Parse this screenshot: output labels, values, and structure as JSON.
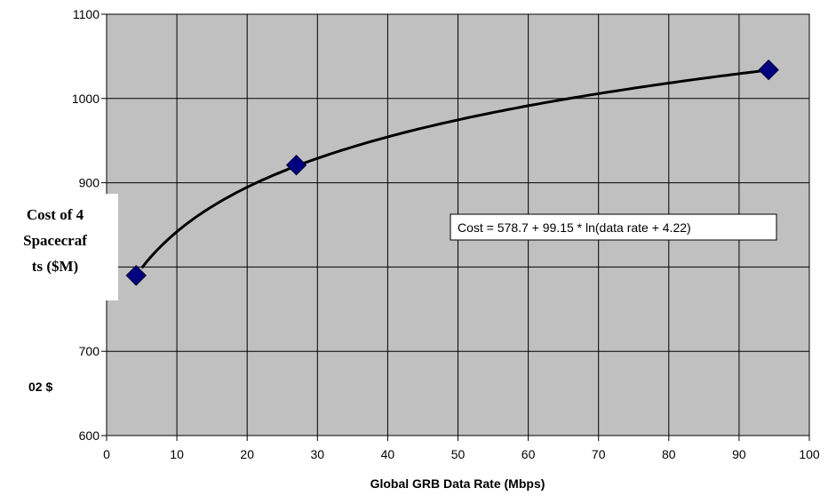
{
  "chart_data": {
    "type": "scatter",
    "xlabel": "Global GRB Data Rate (Mbps)",
    "ylabel_lines": [
      "Cost of 4",
      "Spacecraf",
      "ts ($M)"
    ],
    "note": "02 $",
    "equation": "Cost  = 578.7 + 99.15 * ln(data rate + 4.22)",
    "xlim": [
      0,
      100
    ],
    "ylim": [
      600,
      1100
    ],
    "x_ticks": [
      "0",
      "10",
      "20",
      "30",
      "40",
      "50",
      "60",
      "70",
      "80",
      "90",
      "100"
    ],
    "y_ticks": [
      "600",
      "700",
      "900",
      "1000",
      "1100"
    ],
    "grid": true,
    "plot_background": "#c0c0c0",
    "marker_color": "#000080",
    "series": [
      {
        "marker": "diamond",
        "x": [
          4.2,
          27.0,
          94.2
        ],
        "y": [
          790,
          921,
          1034
        ]
      }
    ],
    "fit_curve": {
      "a": 578.7,
      "b": 99.15,
      "c": 4.22,
      "x_start": 5.0,
      "x_end": 94.2
    }
  }
}
